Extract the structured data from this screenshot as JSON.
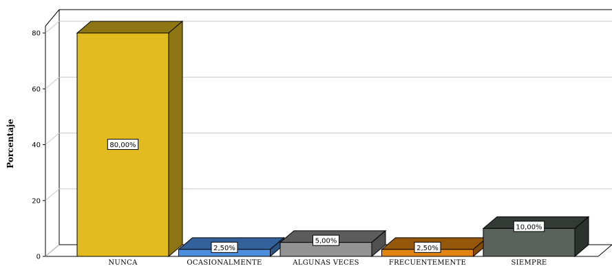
{
  "chart_data": {
    "type": "bar",
    "title": "",
    "xlabel": "",
    "ylabel": "Porcentaje",
    "ylim": [
      0,
      80
    ],
    "yticks": [
      0,
      20,
      40,
      60,
      80
    ],
    "grid": true,
    "bar_style": "3d",
    "categories": [
      "NUNCA",
      "OCASIONALMENTE",
      "ALGUNAS VECES",
      "FRECUENTEMENTE",
      "SIEMPRE"
    ],
    "values": [
      80.0,
      2.5,
      5.0,
      2.5,
      10.0
    ],
    "data_labels": [
      "80,00%",
      "2,50%",
      "5,00%",
      "2,50%",
      "10,00%"
    ],
    "colors": [
      {
        "front": "#e2bb1e",
        "top": "#8d7613",
        "side": "#8d7613"
      },
      {
        "front": "#4d8fdd",
        "top": "#33619a",
        "side": "#2c5484"
      },
      {
        "front": "#939393",
        "top": "#5c5c5c",
        "side": "#505050"
      },
      {
        "front": "#e08412",
        "top": "#94570b",
        "side": "#824b08"
      },
      {
        "front": "#5a625d",
        "top": "#343a36",
        "side": "#2c322e"
      }
    ]
  }
}
